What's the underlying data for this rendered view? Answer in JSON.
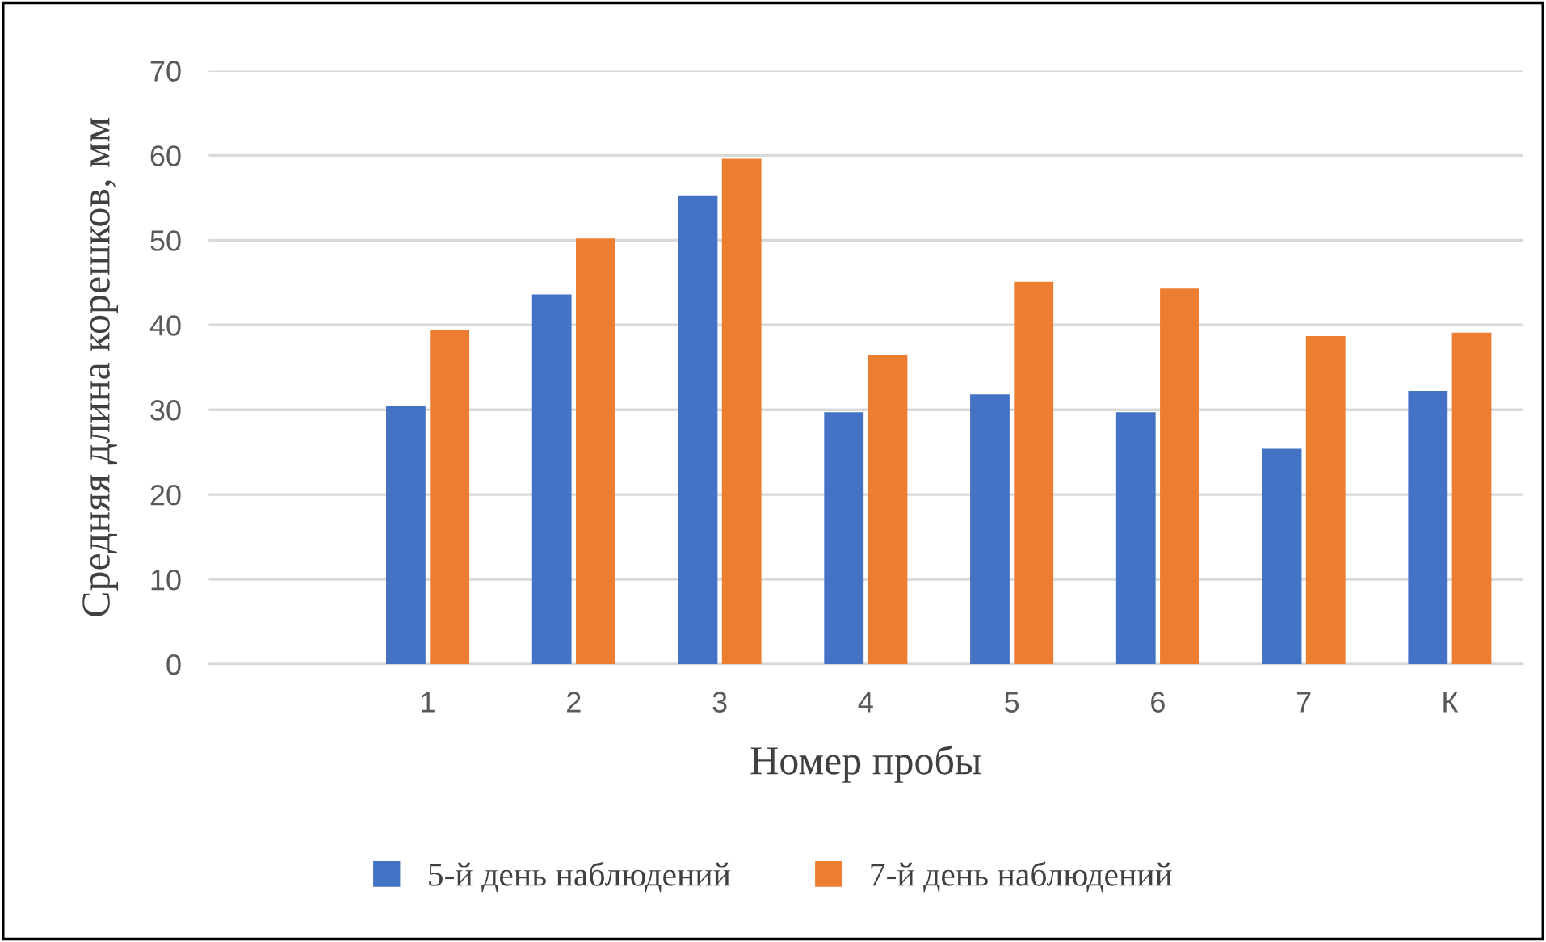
{
  "chart_data": {
    "type": "bar",
    "xlabel": "Номер пробы",
    "ylabel": "Средняя длина корешков, мм",
    "categories": [
      null,
      "1",
      "2",
      "3",
      "4",
      "5",
      "6",
      "7",
      "К"
    ],
    "series": [
      {
        "name": "5-й день наблюдений",
        "color": "#4472c4",
        "values": [
          null,
          30.5,
          43.6,
          55.3,
          29.7,
          31.8,
          29.7,
          25.4,
          32.2
        ]
      },
      {
        "name": "7-й день наблюдений",
        "color": "#ed7d31",
        "values": [
          null,
          39.4,
          50.2,
          59.6,
          36.4,
          45.1,
          44.3,
          38.7,
          39.1
        ]
      }
    ],
    "ylim": [
      0,
      70
    ],
    "yticks": [
      0,
      10,
      20,
      30,
      40,
      50,
      60,
      70
    ],
    "grid": "y",
    "legend": "bottom"
  }
}
